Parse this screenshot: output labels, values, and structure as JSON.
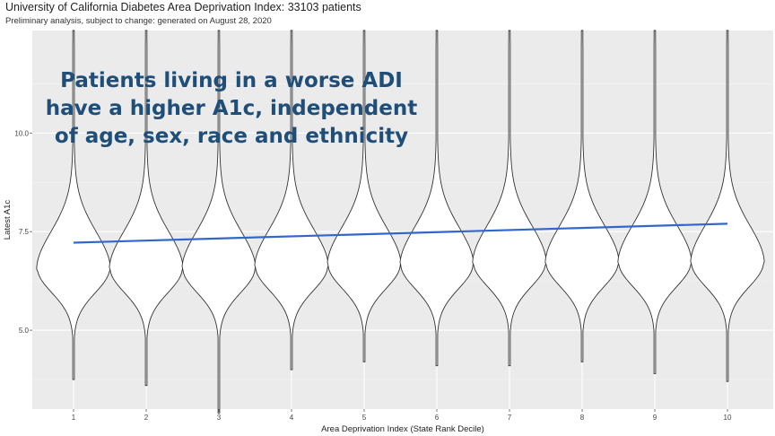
{
  "chart_data": {
    "type": "violin",
    "title": "University of California Diabetes Area Deprivation Index: 33103 patients",
    "subtitle": "Preliminary analysis, subject to change: generated on August 28, 2020",
    "xlabel": "Area Deprivation Index (State Rank Decile)",
    "ylabel": "Latest A1c",
    "categories": [
      "1",
      "2",
      "3",
      "4",
      "5",
      "6",
      "7",
      "8",
      "9",
      "10"
    ],
    "yticks": [
      "5.0",
      "7.5",
      "10.0"
    ],
    "ylim": [
      3.0,
      12.6
    ],
    "grid": true,
    "violin_mode": [
      6.55,
      6.55,
      6.55,
      6.6,
      6.65,
      6.65,
      6.7,
      6.7,
      6.7,
      6.7
    ],
    "violin_min": [
      3.75,
      3.6,
      2.9,
      4.0,
      4.2,
      4.1,
      4.1,
      4.2,
      3.9,
      3.7
    ],
    "trend_line": {
      "color": "#3366cc",
      "y_start": 7.22,
      "y_end": 7.7
    },
    "annotation": [
      "Patients living in a worse ADI",
      "have a higher A1c, independent",
      "of age, sex, race and ethnicity"
    ],
    "annotation_color": "#1f4e79",
    "panel_color": "#ebebeb"
  }
}
